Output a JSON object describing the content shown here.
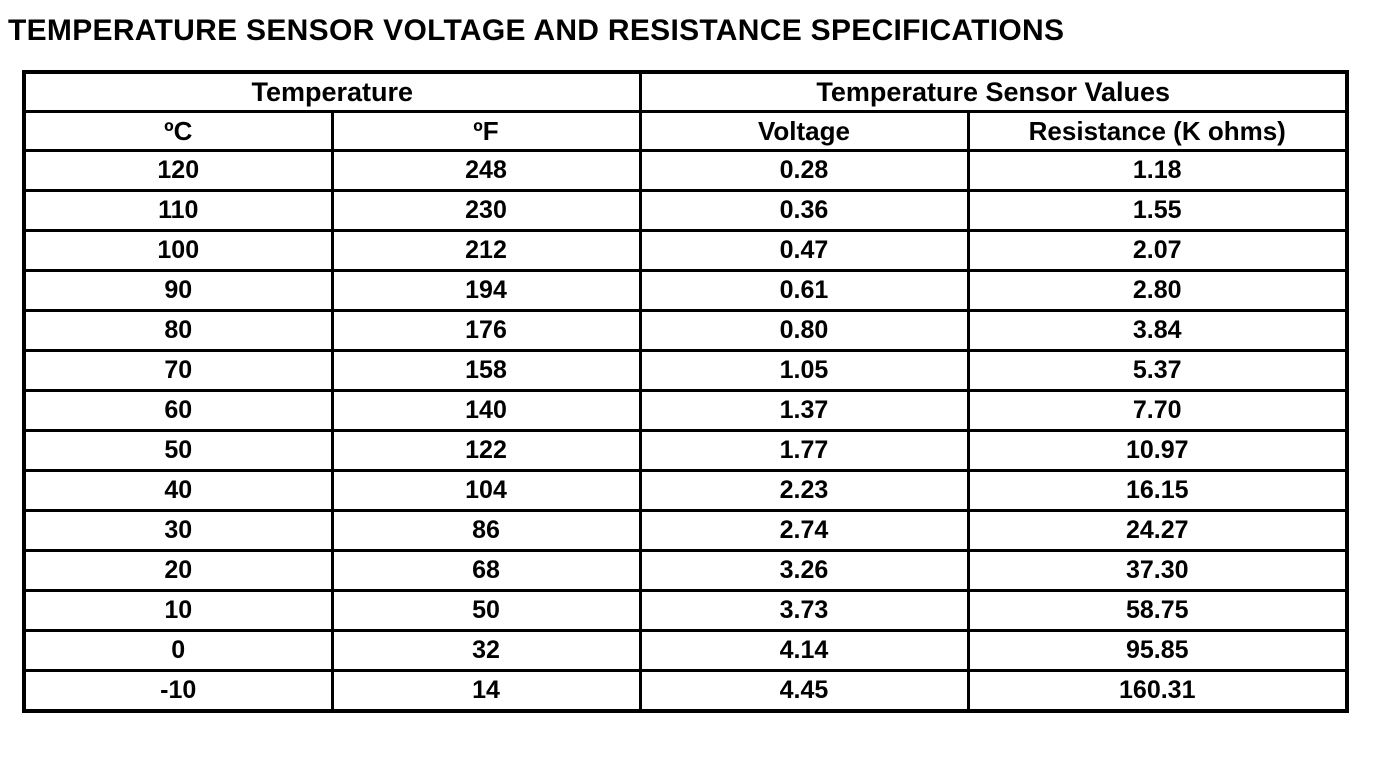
{
  "page_title": "TEMPERATURE SENSOR VOLTAGE AND RESISTANCE SPECIFICATIONS",
  "colors": {
    "text": "#000000",
    "background": "#ffffff",
    "border": "#000000"
  },
  "table": {
    "group_headers": [
      {
        "label": "Temperature"
      },
      {
        "label": "Temperature Sensor Values"
      }
    ],
    "column_headers": [
      "ºC",
      "ºF",
      "Voltage",
      "Resistance (K ohms)"
    ],
    "rows": [
      [
        "120",
        "248",
        "0.28",
        "1.18"
      ],
      [
        "110",
        "230",
        "0.36",
        "1.55"
      ],
      [
        "100",
        "212",
        "0.47",
        "2.07"
      ],
      [
        "90",
        "194",
        "0.61",
        "2.80"
      ],
      [
        "80",
        "176",
        "0.80",
        "3.84"
      ],
      [
        "70",
        "158",
        "1.05",
        "5.37"
      ],
      [
        "60",
        "140",
        "1.37",
        "7.70"
      ],
      [
        "50",
        "122",
        "1.77",
        "10.97"
      ],
      [
        "40",
        "104",
        "2.23",
        "16.15"
      ],
      [
        "30",
        "86",
        "2.74",
        "24.27"
      ],
      [
        "20",
        "68",
        "3.26",
        "37.30"
      ],
      [
        "10",
        "50",
        "3.73",
        "58.75"
      ],
      [
        "0",
        "32",
        "4.14",
        "95.85"
      ],
      [
        "-10",
        "14",
        "4.45",
        "160.31"
      ]
    ]
  }
}
